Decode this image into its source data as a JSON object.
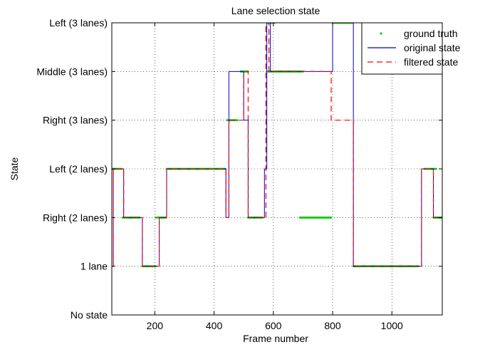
{
  "chart_data": {
    "type": "line",
    "title": "Lane selection state",
    "xlabel": "Frame number",
    "ylabel": "State",
    "xlim": [
      55,
      1170
    ],
    "ylim": [
      0,
      6
    ],
    "x_ticks": [
      200,
      400,
      600,
      800,
      1000
    ],
    "y_ticks": [
      0,
      1,
      2,
      3,
      4,
      5,
      6
    ],
    "y_tick_labels": [
      "No state",
      "1 lane",
      "Right (2 lanes)",
      "Left (2 lanes)",
      "Right (3 lanes)",
      "Middle (3 lanes)",
      "Left (3 lanes)"
    ],
    "grid": true,
    "legend_position": "top-right",
    "series": [
      {
        "name": "ground truth",
        "style": "points",
        "color": "#00cc00",
        "segments": [
          {
            "x0": 55,
            "x1": 90,
            "y": 3
          },
          {
            "x0": 92,
            "x1": 150,
            "y": 2
          },
          {
            "x0": 158,
            "x1": 205,
            "y": 1
          },
          {
            "x0": 205,
            "x1": 238,
            "y": 2
          },
          {
            "x0": 240,
            "x1": 440,
            "y": 3
          },
          {
            "x0": 445,
            "x1": 480,
            "y": 4
          },
          {
            "x0": 490,
            "x1": 515,
            "y": 5
          },
          {
            "x0": 515,
            "x1": 565,
            "y": 2
          },
          {
            "x0": 580,
            "x1": 605,
            "y": 6
          },
          {
            "x0": 580,
            "x1": 700,
            "y": 5
          },
          {
            "x0": 690,
            "x1": 795,
            "y": 2
          },
          {
            "x0": 800,
            "x1": 868,
            "y": 6
          },
          {
            "x0": 870,
            "x1": 1090,
            "y": 1
          },
          {
            "x0": 1110,
            "x1": 1150,
            "y": 3
          },
          {
            "x0": 1140,
            "x1": 1170,
            "y": 2
          }
        ]
      },
      {
        "name": "original state",
        "style": "solid",
        "color": "#0000cc",
        "x": [
          55,
          60,
          60,
          95,
          95,
          158,
          158,
          215,
          215,
          240,
          240,
          440,
          440,
          450,
          450,
          500,
          500,
          515,
          515,
          570,
          570,
          578,
          578,
          590,
          590,
          800,
          800,
          870,
          870,
          1100,
          1100,
          1140,
          1140,
          1170
        ],
        "y": [
          1,
          1,
          3,
          3,
          2,
          2,
          1,
          1,
          2,
          2,
          3,
          3,
          2,
          2,
          5,
          5,
          4,
          4,
          2,
          2,
          3,
          3,
          6,
          6,
          5,
          5,
          6,
          6,
          1,
          1,
          3,
          3,
          2,
          2
        ]
      },
      {
        "name": "filtered state",
        "style": "dashed",
        "color": "#ff0000",
        "x": [
          55,
          60,
          60,
          95,
          95,
          158,
          158,
          215,
          215,
          240,
          240,
          440,
          440,
          450,
          450,
          500,
          500,
          515,
          515,
          575,
          575,
          585,
          585,
          795,
          795,
          870,
          870,
          1100,
          1100,
          1140,
          1140,
          1170
        ],
        "y": [
          1,
          1,
          3,
          3,
          2,
          2,
          1,
          1,
          2,
          2,
          3,
          3,
          2,
          2,
          4,
          4,
          5,
          5,
          2,
          2,
          6,
          6,
          5,
          5,
          4,
          4,
          1,
          1,
          3,
          3,
          2,
          2
        ]
      }
    ]
  }
}
